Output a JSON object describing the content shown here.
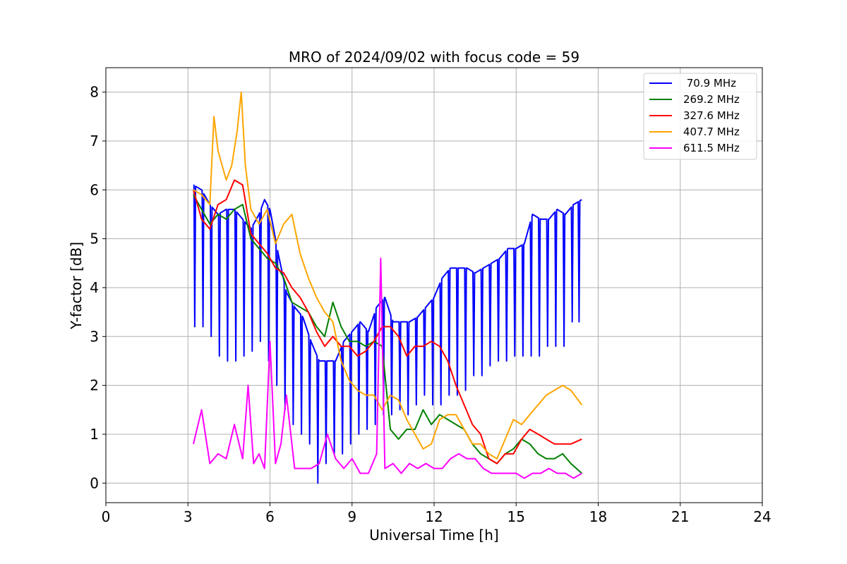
{
  "chart_data": {
    "type": "line",
    "title": "MRO of 2024/09/02 with focus code = 59",
    "xlabel": "Universal Time [h]",
    "ylabel": "Y-factor [dB]",
    "xlim": [
      0,
      24
    ],
    "ylim": [
      -0.4,
      8.5
    ],
    "x_ticks": [
      0,
      3,
      6,
      9,
      12,
      15,
      18,
      21,
      24
    ],
    "y_ticks": [
      0,
      1,
      2,
      3,
      4,
      5,
      6,
      7,
      8
    ],
    "x_tick_labels": [
      "0",
      "3",
      "6",
      "9",
      "12",
      "15",
      "18",
      "21",
      "24"
    ],
    "y_tick_labels": [
      "0",
      "1",
      "2",
      "3",
      "4",
      "5",
      "6",
      "7",
      "8"
    ],
    "grid": true,
    "legend_position": "top-right",
    "dips": {
      "x": [
        3.25,
        3.55,
        3.85,
        4.15,
        4.45,
        4.75,
        5.05,
        5.35,
        5.65,
        5.95,
        6.25,
        6.55,
        6.85,
        7.15,
        7.45,
        7.75,
        8.05,
        8.35,
        8.65,
        8.95,
        9.25,
        9.55,
        9.85,
        10.15,
        10.45,
        10.75,
        11.05,
        11.35,
        11.65,
        11.95,
        12.25,
        12.55,
        12.85,
        13.15,
        13.45,
        13.75,
        14.05,
        14.35,
        14.65,
        14.95,
        15.25,
        15.55,
        15.85,
        16.15,
        16.45,
        16.75,
        17.05,
        17.3
      ],
      "y": [
        3.2,
        3.2,
        3.0,
        2.6,
        2.5,
        2.5,
        2.6,
        2.7,
        2.9,
        2.5,
        2.0,
        1.5,
        1.2,
        1.0,
        0.8,
        0.0,
        0.4,
        0.6,
        0.6,
        0.8,
        1.0,
        1.1,
        1.2,
        1.4,
        1.4,
        1.5,
        1.4,
        1.6,
        1.8,
        1.6,
        1.6,
        1.8,
        1.8,
        1.9,
        2.2,
        2.2,
        2.4,
        2.5,
        2.5,
        2.6,
        2.6,
        2.6,
        2.6,
        2.8,
        2.8,
        2.8,
        3.3,
        3.3
      ]
    },
    "series": [
      {
        "name": " 70.9 MHz",
        "color": "#0000ff",
        "x": [
          3.2,
          3.5,
          3.8,
          4.1,
          4.4,
          4.7,
          5.0,
          5.3,
          5.6,
          5.8,
          6.0,
          6.3,
          6.6,
          6.9,
          7.2,
          7.5,
          7.8,
          8.1,
          8.4,
          8.7,
          9.0,
          9.3,
          9.6,
          9.9,
          10.2,
          10.5,
          10.8,
          11.1,
          11.4,
          11.7,
          12.0,
          12.3,
          12.6,
          12.9,
          13.2,
          13.5,
          13.8,
          14.1,
          14.4,
          14.7,
          15.0,
          15.3,
          15.6,
          15.9,
          16.2,
          16.5,
          16.8,
          17.1,
          17.4
        ],
        "y": [
          6.1,
          6.0,
          5.7,
          5.5,
          5.6,
          5.6,
          5.4,
          5.2,
          5.5,
          5.8,
          5.6,
          4.7,
          3.9,
          3.6,
          3.4,
          2.9,
          2.5,
          2.5,
          2.5,
          2.9,
          3.1,
          3.3,
          3.1,
          3.6,
          3.8,
          3.3,
          3.3,
          3.3,
          3.4,
          3.6,
          3.8,
          4.2,
          4.4,
          4.4,
          4.4,
          4.3,
          4.4,
          4.5,
          4.6,
          4.8,
          4.8,
          4.9,
          5.5,
          5.4,
          5.4,
          5.6,
          5.5,
          5.7,
          5.8
        ]
      },
      {
        "name": "269.2 MHz",
        "color": "#008000",
        "x": [
          3.2,
          3.5,
          3.8,
          4.1,
          4.4,
          4.7,
          5.0,
          5.3,
          5.6,
          5.9,
          6.2,
          6.5,
          6.8,
          7.1,
          7.4,
          7.7,
          8.0,
          8.3,
          8.6,
          8.9,
          9.2,
          9.5,
          9.8,
          10.1,
          10.4,
          10.7,
          11.0,
          11.3,
          11.6,
          11.9,
          12.2,
          12.5,
          12.8,
          13.1,
          13.4,
          13.7,
          14.0,
          14.3,
          14.6,
          14.9,
          15.2,
          15.5,
          15.8,
          16.1,
          16.4,
          16.7,
          17.0,
          17.4
        ],
        "y": [
          5.9,
          5.6,
          5.3,
          5.5,
          5.4,
          5.6,
          5.7,
          5.0,
          4.8,
          4.6,
          4.5,
          4.2,
          3.7,
          3.6,
          3.5,
          3.2,
          3.0,
          3.7,
          3.2,
          2.9,
          2.9,
          2.8,
          2.9,
          2.8,
          1.1,
          0.9,
          1.1,
          1.1,
          1.5,
          1.2,
          1.4,
          1.3,
          1.2,
          1.1,
          0.8,
          0.6,
          0.5,
          0.4,
          0.6,
          0.7,
          0.9,
          0.8,
          0.6,
          0.5,
          0.5,
          0.6,
          0.4,
          0.2
        ]
      },
      {
        "name": "327.6 MHz",
        "color": "#ff0000",
        "x": [
          3.2,
          3.5,
          3.8,
          4.1,
          4.4,
          4.7,
          5.0,
          5.3,
          5.6,
          5.9,
          6.2,
          6.5,
          6.8,
          7.1,
          7.4,
          7.7,
          8.0,
          8.3,
          8.6,
          8.9,
          9.2,
          9.5,
          9.8,
          10.1,
          10.4,
          10.7,
          11.0,
          11.3,
          11.6,
          11.9,
          12.2,
          12.5,
          12.8,
          13.1,
          13.4,
          13.7,
          14.0,
          14.3,
          14.6,
          14.9,
          15.2,
          15.5,
          15.8,
          16.1,
          16.4,
          16.7,
          17.0,
          17.4
        ],
        "y": [
          6.0,
          5.4,
          5.2,
          5.7,
          5.8,
          6.2,
          6.1,
          5.1,
          4.9,
          4.7,
          4.4,
          4.3,
          4.0,
          3.8,
          3.5,
          3.1,
          2.8,
          3.0,
          2.8,
          2.8,
          2.6,
          2.7,
          2.9,
          3.2,
          3.2,
          3.0,
          2.6,
          2.8,
          2.8,
          2.9,
          2.8,
          2.5,
          2.0,
          1.6,
          1.2,
          1.0,
          0.5,
          0.4,
          0.6,
          0.6,
          0.9,
          1.1,
          1.0,
          0.9,
          0.8,
          0.8,
          0.8,
          0.9
        ]
      },
      {
        "name": "407.7 MHz",
        "color": "#ffa500",
        "x": [
          3.2,
          3.5,
          3.8,
          3.95,
          4.1,
          4.4,
          4.6,
          4.8,
          4.95,
          5.1,
          5.3,
          5.6,
          5.9,
          6.2,
          6.5,
          6.8,
          7.1,
          7.4,
          7.7,
          8.0,
          8.3,
          8.6,
          8.9,
          9.2,
          9.5,
          9.8,
          10.1,
          10.4,
          10.7,
          11.0,
          11.3,
          11.6,
          11.9,
          12.2,
          12.5,
          12.8,
          13.1,
          13.4,
          13.7,
          14.0,
          14.3,
          14.6,
          14.9,
          15.2,
          15.5,
          15.8,
          16.1,
          16.4,
          16.7,
          17.0,
          17.4
        ],
        "y": [
          6.0,
          5.9,
          5.7,
          7.5,
          6.8,
          6.2,
          6.5,
          7.2,
          8.0,
          6.5,
          5.6,
          5.3,
          5.6,
          4.9,
          5.3,
          5.5,
          4.7,
          4.2,
          3.8,
          3.5,
          3.3,
          2.5,
          2.1,
          1.9,
          1.8,
          1.8,
          1.5,
          1.8,
          1.7,
          1.3,
          1.0,
          0.7,
          0.8,
          1.3,
          1.4,
          1.4,
          1.1,
          0.8,
          0.8,
          0.6,
          0.5,
          0.9,
          1.3,
          1.2,
          1.4,
          1.6,
          1.8,
          1.9,
          2.0,
          1.9,
          1.6
        ]
      },
      {
        "name": "611.5 MHz",
        "color": "#ff00ff",
        "x": [
          3.2,
          3.5,
          3.8,
          4.1,
          4.4,
          4.7,
          5.0,
          5.2,
          5.4,
          5.6,
          5.8,
          6.0,
          6.2,
          6.4,
          6.6,
          6.9,
          7.2,
          7.5,
          7.8,
          8.1,
          8.4,
          8.7,
          9.0,
          9.3,
          9.6,
          9.9,
          10.05,
          10.2,
          10.5,
          10.8,
          11.1,
          11.4,
          11.7,
          12.0,
          12.3,
          12.6,
          12.9,
          13.2,
          13.5,
          13.8,
          14.1,
          14.4,
          14.7,
          15.0,
          15.3,
          15.6,
          15.9,
          16.2,
          16.5,
          16.8,
          17.1,
          17.4
        ],
        "y": [
          0.8,
          1.5,
          0.4,
          0.6,
          0.5,
          1.2,
          0.5,
          2.0,
          0.4,
          0.6,
          0.3,
          2.9,
          0.4,
          0.8,
          1.8,
          0.3,
          0.3,
          0.3,
          0.4,
          1.0,
          0.5,
          0.3,
          0.5,
          0.2,
          0.2,
          0.6,
          4.6,
          0.3,
          0.4,
          0.2,
          0.4,
          0.3,
          0.4,
          0.3,
          0.3,
          0.5,
          0.6,
          0.5,
          0.5,
          0.3,
          0.2,
          0.2,
          0.2,
          0.2,
          0.1,
          0.2,
          0.2,
          0.3,
          0.2,
          0.2,
          0.1,
          0.2
        ]
      }
    ]
  }
}
